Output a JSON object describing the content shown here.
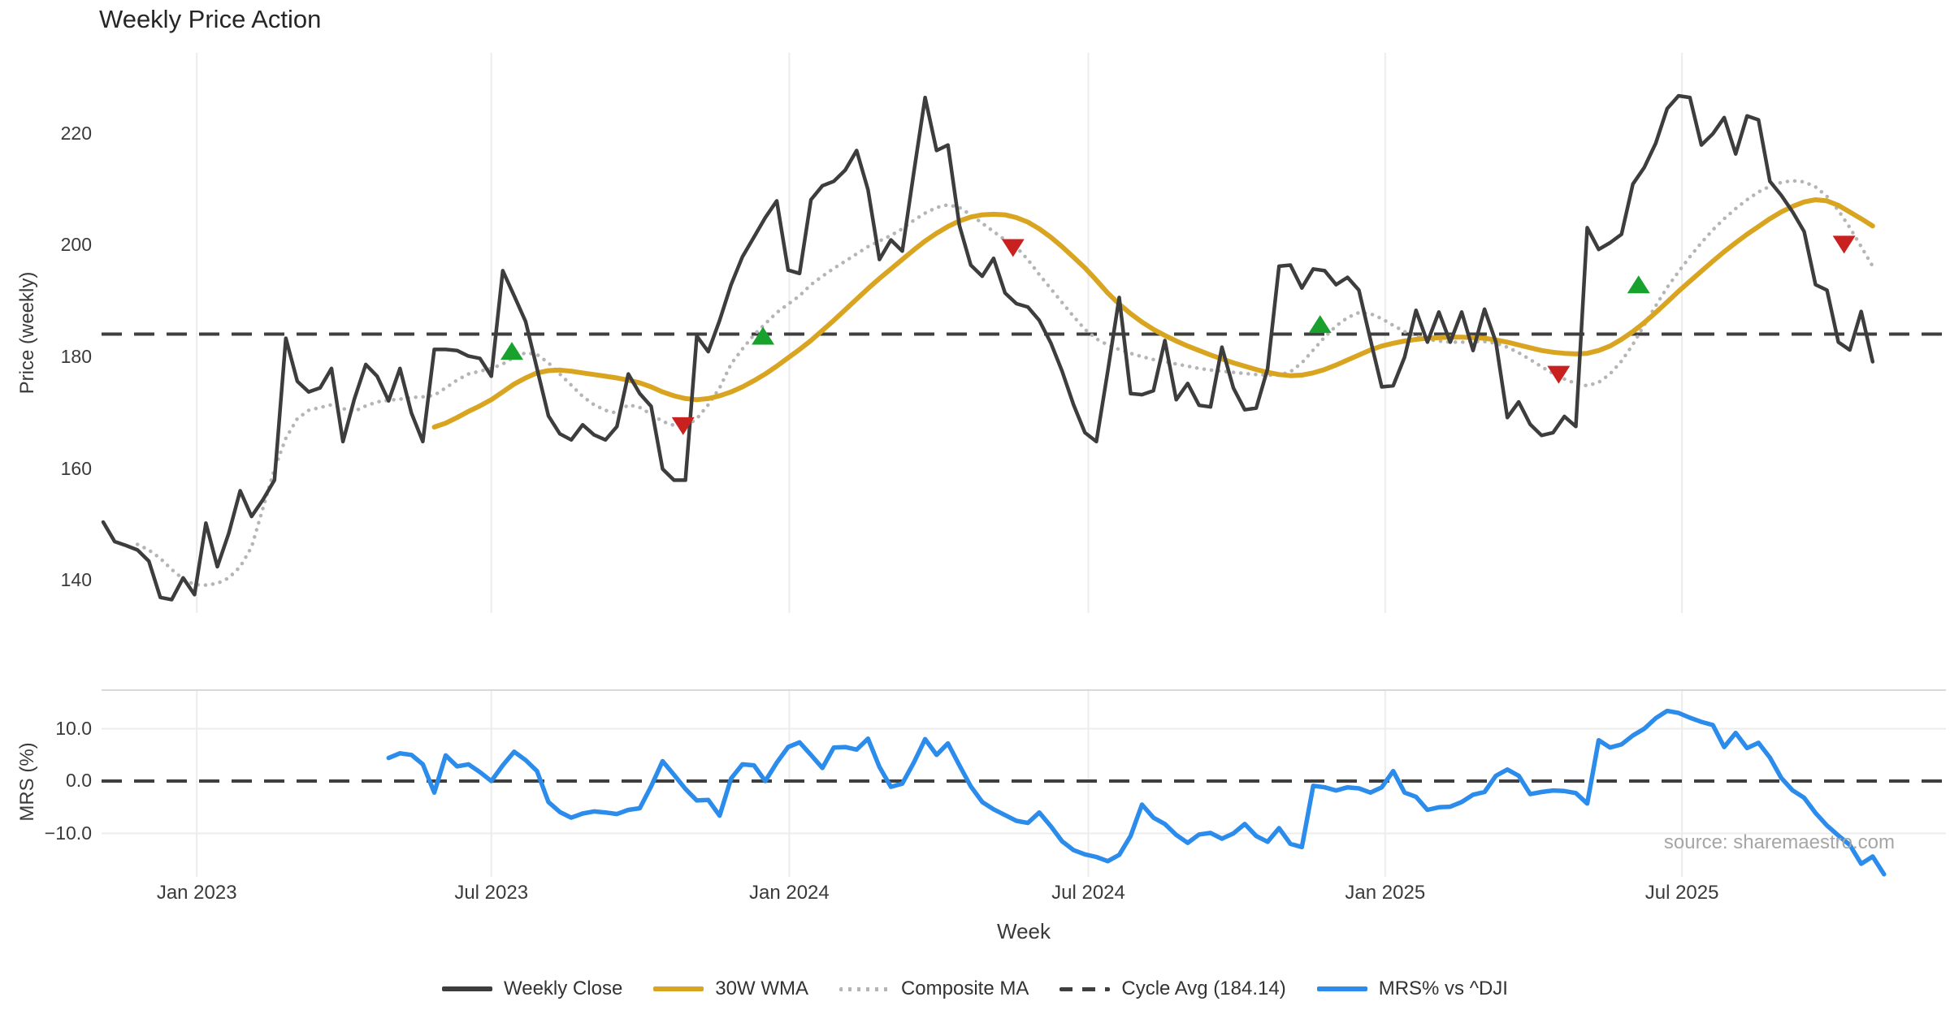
{
  "title": "Weekly Price Action",
  "source": "source: sharemaestro.com",
  "axes": {
    "price_label": "Price (weekly)",
    "mrs_label": "MRS (%)",
    "week_label": "Week",
    "price_ticks": [
      {
        "label": "220",
        "value": 220
      },
      {
        "label": "200",
        "value": 200
      },
      {
        "label": "180",
        "value": 180
      },
      {
        "label": "160",
        "value": 160
      },
      {
        "label": "140",
        "value": 140
      }
    ],
    "mrs_ticks": [
      {
        "label": "10.0",
        "value": 10
      },
      {
        "label": "0.0",
        "value": 0
      },
      {
        "label": "−10.0",
        "value": -10
      }
    ],
    "x_ticks": [
      {
        "label": "Jan 2023",
        "week": 8.2
      },
      {
        "label": "Jul 2023",
        "week": 34
      },
      {
        "label": "Jan 2024",
        "week": 60.1
      },
      {
        "label": "Jul 2024",
        "week": 86.3
      },
      {
        "label": "Jan 2025",
        "week": 112.3
      },
      {
        "label": "Jul 2025",
        "week": 138.3
      }
    ]
  },
  "colors": {
    "close": "#3d3d3d",
    "wma": "#d9a521",
    "composite": "#b5b5b5",
    "cycle": "#3f3f3f",
    "mrs": "#2b8ceb",
    "buy": "#18a12c",
    "sell": "#c92020",
    "grid": "#ececec",
    "panel_border": "#d9d9d9",
    "text": "#3a3a3a"
  },
  "legend": [
    {
      "label": "Weekly Close",
      "style": "solid",
      "color": "#3d3d3d"
    },
    {
      "label": "30W WMA",
      "style": "solid",
      "color": "#d9a521"
    },
    {
      "label": "Composite MA",
      "style": "dotted",
      "color": "#b5b5b5"
    },
    {
      "label": "Cycle Avg (184.14)",
      "style": "dashed",
      "color": "#3f3f3f"
    },
    {
      "label": "MRS% vs ^DJI",
      "style": "solid",
      "color": "#2b8ceb"
    }
  ],
  "chart_data": {
    "type": "line",
    "x_unit": "weeks (Nov 2022 → Oct 2025)",
    "cycle_avg": 184.14,
    "panels": [
      {
        "id": "price",
        "ylabel": "Price (weekly)",
        "ylim": [
          134,
          234.5
        ],
        "yticks": [
          140,
          160,
          180,
          200,
          220
        ],
        "series": [
          {
            "name": "Weekly Close",
            "style": "solid",
            "color": "#3d3d3d",
            "width": 4.5,
            "values": [
              150.5,
              147,
              146.3,
              145.5,
              143.5,
              137,
              136.6,
              140.5,
              137.5,
              150.3,
              142.5,
              148.5,
              156.1,
              151.5,
              154.5,
              158,
              183.4,
              175.7,
              173.8,
              174.5,
              178,
              164.9,
              172.5,
              178.7,
              176.6,
              172.2,
              178,
              170,
              164.9,
              181.4,
              181.4,
              181.2,
              180.2,
              179.8,
              176.6,
              195.5,
              191,
              186.4,
              178,
              169.5,
              166.3,
              165.2,
              167.9,
              166.1,
              165.2,
              167.6,
              177,
              173.5,
              171.2,
              160,
              158,
              158,
              183.8,
              181,
              186.6,
              193,
              198,
              201.5,
              205,
              208,
              195.6,
              195,
              208.2,
              210.7,
              211.5,
              213.5,
              217,
              210,
              197.5,
              201,
              199,
              213,
              226.5,
              217,
              218,
              203.6,
              196.5,
              194.5,
              197.7,
              191.5,
              189.6,
              189,
              186.6,
              182.6,
              177.5,
              171.5,
              166.5,
              164.9,
              177.5,
              190.7,
              173.5,
              173.3,
              174,
              183,
              172.4,
              175.3,
              171.4,
              171.1,
              181.8,
              174.5,
              170.6,
              170.9,
              177.9,
              196.3,
              196.5,
              192.4,
              195.8,
              195.5,
              193,
              194.3,
              192,
              183.2,
              174.7,
              174.9,
              180,
              188.4,
              182.7,
              188.1,
              182.7,
              188.1,
              181.2,
              188.6,
              182.7,
              169.2,
              172,
              168,
              166,
              166.5,
              169.4,
              167.6,
              203.2,
              199.3,
              200.5,
              202,
              211,
              214,
              218.3,
              224.5,
              226.8,
              226.5,
              218,
              220,
              222.9,
              216.4,
              223.2,
              222.5,
              211.5,
              209,
              206,
              202.5,
              193,
              192,
              182.7,
              181.3,
              188.2,
              179.2,
              null
            ]
          },
          {
            "name": "30W WMA",
            "style": "solid",
            "color": "#d9a521",
            "width": 6,
            "values": [
              null,
              null,
              null,
              null,
              null,
              null,
              null,
              null,
              null,
              null,
              null,
              null,
              null,
              null,
              null,
              null,
              null,
              null,
              null,
              null,
              null,
              null,
              null,
              null,
              null,
              null,
              null,
              null,
              null,
              167.5,
              168.2,
              169.2,
              170.3,
              171.3,
              172.4,
              173.8,
              175.2,
              176.3,
              177.2,
              177.6,
              177.7,
              177.5,
              177.2,
              176.9,
              176.6,
              176.3,
              175.9,
              175.4,
              174.7,
              173.8,
              173.1,
              172.6,
              172.4,
              172.6,
              173.1,
              173.8,
              174.7,
              175.8,
              177,
              178.4,
              179.9,
              181.4,
              183,
              184.8,
              186.6,
              188.5,
              190.4,
              192.3,
              194.1,
              195.8,
              197.5,
              199.2,
              200.8,
              202.2,
              203.4,
              204.4,
              205.1,
              205.5,
              205.6,
              205.5,
              205,
              204.2,
              203,
              201.5,
              199.8,
              197.9,
              196,
              193.8,
              191.5,
              189.5,
              187.8,
              186.3,
              185,
              183.9,
              182.9,
              182,
              181.2,
              180.4,
              179.7,
              179,
              178.4,
              177.8,
              177.3,
              176.9,
              176.7,
              176.8,
              177.2,
              177.8,
              178.6,
              179.5,
              180.4,
              181.3,
              182,
              182.5,
              182.9,
              183.2,
              183.4,
              183.5,
              183.6,
              183.6,
              183.5,
              183.4,
              183.1,
              182.7,
              182.2,
              181.7,
              181.2,
              180.9,
              180.7,
              180.6,
              180.7,
              181.2,
              182,
              183.2,
              184.6,
              186.2,
              188,
              189.9,
              191.8,
              193.6,
              195.4,
              197.2,
              198.9,
              200.5,
              202,
              203.4,
              204.8,
              206,
              207,
              207.8,
              208.2,
              208,
              207.2,
              206,
              204.8,
              203.5,
              null
            ]
          },
          {
            "name": "Composite MA",
            "style": "dotted",
            "color": "#b5b5b5",
            "width": 4.5,
            "values": [
              null,
              null,
              null,
              146.5,
              145.5,
              144,
              142,
              140.3,
              139.3,
              139.2,
              139.5,
              140.5,
              142.5,
              146,
              153,
              160,
              165.5,
              169,
              170.5,
              171,
              171.5,
              170.8,
              170.3,
              171.3,
              172,
              172.3,
              172.5,
              172.8,
              172.9,
              173.2,
              174.5,
              175.9,
              177,
              177.5,
              178,
              178.8,
              180,
              180.8,
              180.5,
              179,
              177,
              175,
              173,
              171.5,
              170.5,
              170,
              171.5,
              171,
              169.8,
              168.5,
              167.8,
              167.6,
              169,
              171.5,
              174.5,
              178.8,
              181.5,
              184,
              186,
              188,
              189.5,
              191,
              193,
              194.5,
              195.9,
              197.2,
              198.5,
              199.8,
              200.8,
              201.8,
              203,
              204.5,
              205.8,
              206.8,
              207.3,
              206.8,
              205.5,
              204,
              202.5,
              201,
              199.7,
              197.5,
              194.8,
              192.3,
              189.8,
              187.3,
              185,
              183.3,
              182.2,
              181.4,
              180.7,
              180.1,
              179.6,
              179.2,
              178.8,
              178.4,
              178,
              177.7,
              177.5,
              177.3,
              177.1,
              176.9,
              176.8,
              176.8,
              177.4,
              179,
              181.3,
              183.6,
              185.6,
              187.1,
              188,
              187.8,
              186.9,
              185.7,
              184.6,
              183.8,
              183.2,
              182.9,
              182.7,
              182.7,
              182.8,
              182.8,
              182.5,
              181.8,
              180.8,
              179.6,
              178.3,
              177.1,
              176.1,
              175.3,
              174.9,
              175.5,
              177,
              179.3,
              182.3,
              185.8,
              189.2,
              192.5,
              195.3,
              198,
              200.5,
              202.8,
              204.8,
              206.6,
              208.2,
              209.6,
              210.6,
              211.3,
              211.6,
              211.4,
              210.5,
              208.8,
              206.3,
              203.2,
              199.8,
              196.3,
              null
            ]
          }
        ],
        "reference_line": {
          "name": "Cycle Avg",
          "value": 184.14,
          "style": "dashed",
          "color": "#3f3f3f"
        },
        "markers": {
          "buy": {
            "shape": "triangle-up",
            "color": "#18a12c",
            "points": [
              {
                "week": 35.8,
                "value": 181.0
              },
              {
                "week": 57.8,
                "value": 183.7
              },
              {
                "week": 106.6,
                "value": 185.8
              },
              {
                "week": 134.5,
                "value": 192.9
              }
            ]
          },
          "sell": {
            "shape": "triangle-down",
            "color": "#c92020",
            "points": [
              {
                "week": 50.8,
                "value": 167.8
              },
              {
                "week": 79.7,
                "value": 199.7
              },
              {
                "week": 127.5,
                "value": 177.0
              },
              {
                "week": 152.5,
                "value": 200.3
              }
            ]
          }
        }
      },
      {
        "id": "mrs",
        "ylabel": "MRS (%)",
        "ylim": [
          -18.3,
          17.4
        ],
        "yticks": [
          -10,
          0,
          10
        ],
        "zero_line": 0,
        "series": [
          {
            "name": "MRS% vs ^DJI",
            "style": "solid",
            "color": "#2b8ceb",
            "width": 5.5,
            "values": [
              null,
              null,
              null,
              null,
              null,
              null,
              null,
              null,
              null,
              null,
              null,
              null,
              null,
              null,
              null,
              null,
              null,
              null,
              null,
              null,
              null,
              null,
              null,
              null,
              null,
              4.4,
              5.3,
              5,
              3.2,
              -2.2,
              4.9,
              2.8,
              3.2,
              1.7,
              0,
              3,
              5.6,
              4,
              1.9,
              -4,
              -5.9,
              -7,
              -6.2,
              -5.8,
              -6,
              -6.3,
              -5.5,
              -5.2,
              -1,
              3.8,
              1.2,
              -1.5,
              -3.7,
              -3.6,
              -6.6,
              0.5,
              3.2,
              3,
              0,
              3.5,
              6.5,
              7.4,
              5,
              2.5,
              6.4,
              6.5,
              6,
              8.1,
              2.7,
              -1.1,
              -0.5,
              3.5,
              8,
              5,
              7.2,
              3,
              -1,
              -4,
              -5.4,
              -6.5,
              -7.6,
              -8,
              -6,
              -8.6,
              -11.5,
              -13.2,
              -14,
              -14.5,
              -15.3,
              -14.1,
              -10.5,
              -4.5,
              -7,
              -8.2,
              -10.3,
              -11.8,
              -10.2,
              -9.9,
              -11,
              -10,
              -8.2,
              -10.5,
              -11.6,
              -9,
              -12,
              -12.6,
              -0.9,
              -1.2,
              -1.8,
              -1.2,
              -1.4,
              -2.2,
              -1.2,
              1.9,
              -2.2,
              -3,
              -5.5,
              -5,
              -4.9,
              -4,
              -2.6,
              -2.1,
              1,
              2.2,
              1,
              -2.5,
              -2.1,
              -1.8,
              -1.9,
              -2.3,
              -4.3,
              7.8,
              6.4,
              7,
              8.7,
              10,
              12,
              13.4,
              13,
              12.1,
              11.3,
              10.7,
              6.5,
              9.2,
              6.3,
              7.3,
              4.5,
              0.6,
              -1.8,
              -3.2,
              -6.1,
              -8.5,
              -10.4,
              -12.2,
              -15.8,
              -14.4,
              -17.8
            ]
          }
        ]
      }
    ]
  }
}
